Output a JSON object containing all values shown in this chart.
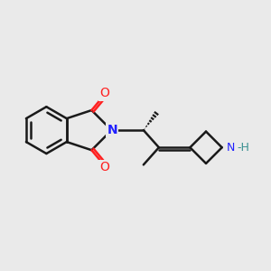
{
  "bg_color": "#eaeaea",
  "bond_color": "#1a1a1a",
  "N_color": "#2020ff",
  "O_color": "#ff2020",
  "NH_color": "#3a9090",
  "line_width": 1.8,
  "figsize": [
    3.0,
    3.0
  ],
  "dpi": 100,
  "xlim": [
    0,
    10
  ],
  "ylim": [
    0,
    10
  ]
}
